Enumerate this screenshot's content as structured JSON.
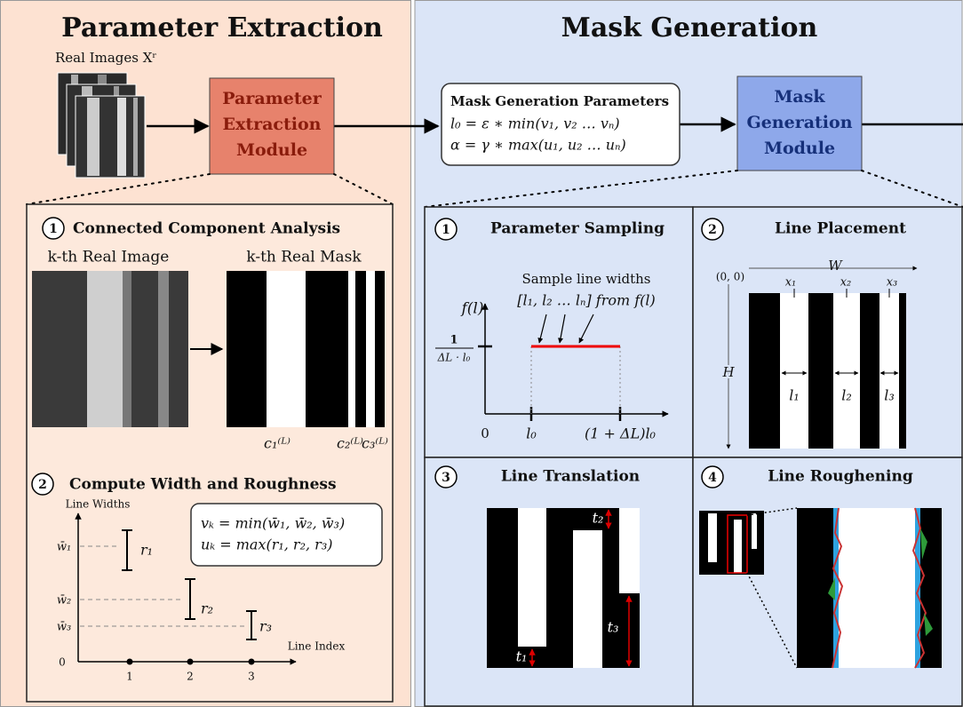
{
  "left": {
    "title": "Parameter Extraction",
    "real_images": "Real Images Xʳ",
    "module": [
      "Parameter",
      "Extraction",
      "Module"
    ],
    "cca": {
      "number": "1",
      "title": "Connected Component Analysis",
      "image_label": "k-th Real Image",
      "mask_label": "k-th Real Mask",
      "components": [
        "c₁⁽ᴸ⁾",
        "c₂⁽ᴸ⁾",
        "c₃⁽ᴸ⁾"
      ]
    },
    "roughness": {
      "number": "2",
      "title": "Compute Width and Roughness",
      "y_label": "Line Widths",
      "x_label": "Line Index",
      "formulas": [
        "vₖ = min(w̄₁, w̄₂, w̄₃)",
        "uₖ = max(r₁, r₂, r₃)"
      ],
      "widths": [
        "w̄₁",
        "w̄₂",
        "w̄₃"
      ],
      "roughness": [
        "r₁",
        "r₂",
        "r₃"
      ],
      "origin": "0",
      "indices": [
        "1",
        "2",
        "3"
      ]
    }
  },
  "right": {
    "title": "Mask Generation",
    "parameters": {
      "title": "Mask Generation Parameters",
      "items": [
        "l₀ = ε ∗ min(v₁, v₂ … vₙ)",
        "α = γ ∗ max(u₁, u₂ … uₙ)"
      ]
    },
    "module": [
      "Mask",
      "Generation",
      "Module"
    ],
    "sampling": {
      "number": "1",
      "title": "Parameter Sampling",
      "note": [
        "Sample line widths",
        "[l₁, l₂ … lₙ] from f(l)"
      ],
      "y_label": "f(l)",
      "density": {
        "numerator": "1",
        "denominator": "ΔL · l₀"
      },
      "x_ticks": [
        "0",
        "l₀",
        "(1 + ΔL)l₀"
      ]
    },
    "placement": {
      "number": "2",
      "title": "Line Placement",
      "origin": "(0, 0)",
      "width": "W",
      "height": "H",
      "positions": [
        "x₁",
        "x₂",
        "x₃"
      ],
      "widths": [
        "l₁",
        "l₂",
        "l₃"
      ]
    },
    "translation": {
      "number": "3",
      "title": "Line Translation",
      "shifts": [
        "t₁",
        "t₂",
        "t₃"
      ]
    },
    "roughening": {
      "number": "4",
      "title": "Line Roughening"
    }
  }
}
